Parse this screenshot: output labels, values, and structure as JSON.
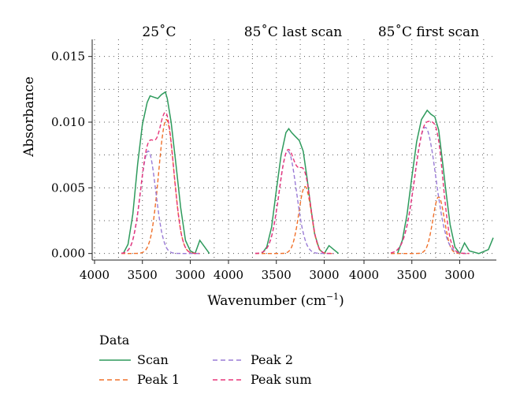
{
  "chart_data": {
    "type": "line",
    "xlabel": "Wavenumber (cm",
    "xlabel_sup": "−1",
    "xlabel_close": ")",
    "ylabel": "Absorbance",
    "x_reversed": true,
    "xlim": [
      4000,
      2650
    ],
    "ylim": [
      -0.0005,
      0.0163
    ],
    "x_ticks": [
      4000,
      3500,
      3000
    ],
    "x_tick_labels": [
      "4000",
      "3500",
      "3000"
    ],
    "y_ticks": [
      0.0,
      0.005,
      0.01,
      0.015
    ],
    "y_tick_labels": [
      "0.000",
      "0.005",
      "0.010",
      "0.015"
    ],
    "grid": true,
    "grid_style": "dotted",
    "legend_position": "bottom-left",
    "legend_title": "Data",
    "legend": [
      {
        "key": "scan",
        "label": "Scan",
        "color": "#2e9a5c",
        "dash": "solid"
      },
      {
        "key": "peak1",
        "label": "Peak 1",
        "color": "#f0702a",
        "dash": "dashed"
      },
      {
        "key": "peak2",
        "label": "Peak 2",
        "color": "#9a7bd6",
        "dash": "dashed"
      },
      {
        "key": "peaksum",
        "label": "Peak sum",
        "color": "#e8367a",
        "dash": "dashed"
      }
    ],
    "panels": [
      {
        "title": "25˚C",
        "peak1": {
          "center": 3250,
          "amplitude": 0.0102,
          "width": 80
        },
        "peak2": {
          "center": 3440,
          "amplitude": 0.0078,
          "width": 80
        },
        "scan_points": [
          [
            3700,
            0.0
          ],
          [
            3650,
            0.0007
          ],
          [
            3600,
            0.003
          ],
          [
            3550,
            0.0068
          ],
          [
            3500,
            0.0098
          ],
          [
            3450,
            0.0115
          ],
          [
            3420,
            0.012
          ],
          [
            3380,
            0.0119
          ],
          [
            3340,
            0.0118
          ],
          [
            3300,
            0.0121
          ],
          [
            3260,
            0.0123
          ],
          [
            3240,
            0.0118
          ],
          [
            3200,
            0.01
          ],
          [
            3150,
            0.0068
          ],
          [
            3100,
            0.0035
          ],
          [
            3050,
            0.001
          ],
          [
            3000,
            0.0002
          ],
          [
            2950,
            0.0
          ],
          [
            2900,
            0.001
          ],
          [
            2850,
            0.0005
          ],
          [
            2800,
            0.0
          ]
        ]
      },
      {
        "title": "85˚C last scan",
        "peak1": {
          "center": 3200,
          "amplitude": 0.0051,
          "width": 65
        },
        "peak2": {
          "center": 3380,
          "amplitude": 0.0078,
          "width": 90
        },
        "scan_points": [
          [
            3650,
            0.0
          ],
          [
            3600,
            0.0005
          ],
          [
            3550,
            0.002
          ],
          [
            3500,
            0.0048
          ],
          [
            3450,
            0.0075
          ],
          [
            3400,
            0.0092
          ],
          [
            3370,
            0.0095
          ],
          [
            3340,
            0.0092
          ],
          [
            3300,
            0.0089
          ],
          [
            3260,
            0.0086
          ],
          [
            3220,
            0.0078
          ],
          [
            3180,
            0.0058
          ],
          [
            3140,
            0.0035
          ],
          [
            3100,
            0.0015
          ],
          [
            3050,
            0.0003
          ],
          [
            3000,
            0.0
          ],
          [
            2950,
            0.0006
          ],
          [
            2900,
            0.0003
          ],
          [
            2850,
            0.0
          ]
        ]
      },
      {
        "title": "85˚C first scan",
        "peak1": {
          "center": 3220,
          "amplitude": 0.0043,
          "width": 60
        },
        "peak2": {
          "center": 3360,
          "amplitude": 0.0096,
          "width": 110
        },
        "scan_points": [
          [
            3650,
            0.0
          ],
          [
            3600,
            0.001
          ],
          [
            3550,
            0.003
          ],
          [
            3500,
            0.0058
          ],
          [
            3450,
            0.0085
          ],
          [
            3400,
            0.0102
          ],
          [
            3340,
            0.0109
          ],
          [
            3300,
            0.0106
          ],
          [
            3260,
            0.0104
          ],
          [
            3220,
            0.0094
          ],
          [
            3180,
            0.007
          ],
          [
            3140,
            0.0045
          ],
          [
            3100,
            0.0022
          ],
          [
            3050,
            0.0005
          ],
          [
            3000,
            0.0
          ],
          [
            2950,
            0.0008
          ],
          [
            2900,
            0.0002
          ],
          [
            2800,
            0.0
          ],
          [
            2700,
            0.0003
          ],
          [
            2650,
            0.0012
          ]
        ]
      }
    ]
  }
}
